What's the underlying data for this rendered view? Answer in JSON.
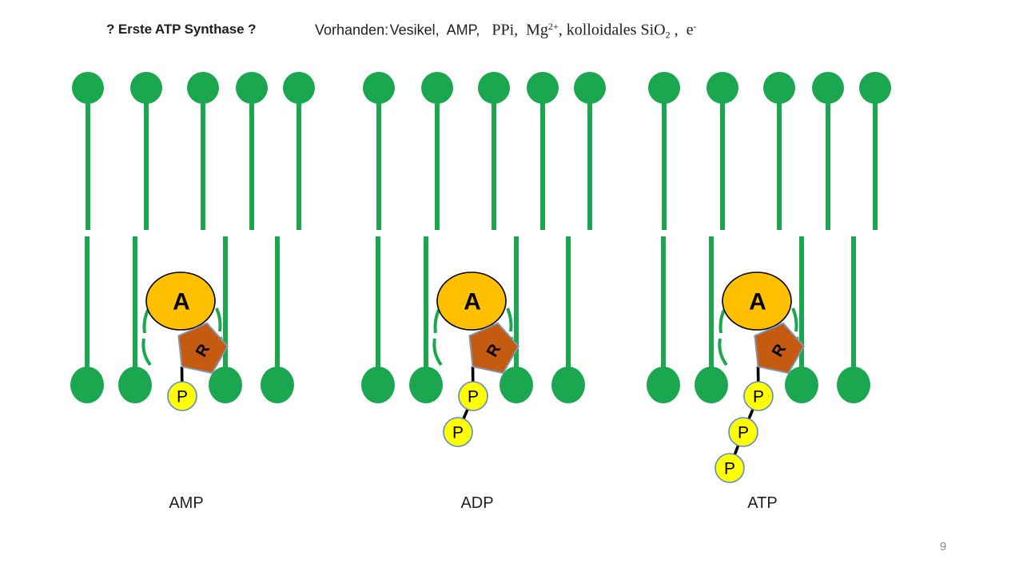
{
  "slide": {
    "title": "? Erste ATP Synthase ?",
    "available_line": {
      "segments": [
        {
          "text": "Vorhanden: Vesikel,  AMP,",
          "style": "sans"
        },
        {
          "text": "   PPi,  Mg",
          "style": "serif"
        },
        {
          "text": "2+",
          "style": "serif-sup"
        },
        {
          "text": ", kolloidales SiO",
          "style": "serif"
        },
        {
          "text": "2",
          "style": "serif-sub"
        },
        {
          "text": " ,  e",
          "style": "serif"
        },
        {
          "text": "-",
          "style": "serif-sup"
        }
      ]
    },
    "page_number": "9"
  },
  "molecule_letters": {
    "adenine": "A",
    "ribose": "R",
    "phosphate": "P"
  },
  "groups": [
    {
      "label": "AMP",
      "phosphate_count": 1
    },
    {
      "label": "ADP",
      "phosphate_count": 2
    },
    {
      "label": "ATP",
      "phosphate_count": 3
    }
  ],
  "membrane": {
    "top_lipids_per_group": 5,
    "bottom_lipids_per_group": 4
  },
  "colors": {
    "membrane_green": "#1AA750",
    "adenine_fill": "#FFC000",
    "adenine_stroke": "#000000",
    "ribose_fill": "#C55A11",
    "ribose_stroke": "#8496B0",
    "phosphate_fill": "#FFFF00",
    "phosphate_stroke": "#5B8BC9",
    "bond": "#000000",
    "text": "#1f1f1f",
    "page_number_color": "#8c8c8c"
  }
}
